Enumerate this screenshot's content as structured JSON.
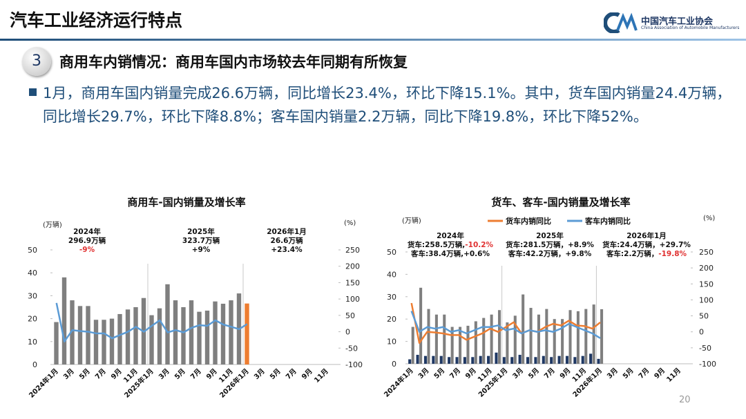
{
  "header": {
    "title": "汽车工业经济运行特点",
    "org": "中国汽车工业协会",
    "org_en": "China Association of Automobile Manufacturers"
  },
  "section": {
    "number": "3",
    "title": "商用车内销情况：",
    "subtitle": "商用车国内市场较去年同期有所恢复"
  },
  "bullet": "1月，商用车国内销量完成26.6万辆，同比增长23.4%，环比下降15.1%。其中，货车国内销量24.4万辆，同比增长29.7%，环比下降8.8%；客车国内销量2.2万辆，同比下降19.8%，环比下降52%。",
  "page_number": "20",
  "chart_data": [
    {
      "type": "bar",
      "title": "商用车-国内销量及增长率",
      "y_label": "(万辆)",
      "y2_label": "(%)",
      "bar_layout": "overlay",
      "categories": [
        "2024年1月",
        null,
        "3月",
        null,
        "5月",
        null,
        "7月",
        null,
        "9月",
        null,
        "11月",
        null,
        "2025年1月",
        null,
        "3月",
        null,
        "5月",
        null,
        "7月",
        null,
        "9月",
        null,
        "11月",
        null,
        "2026年1月",
        null,
        "3月",
        null,
        "5月",
        null,
        "7月",
        null,
        "9月",
        null,
        "11月",
        null
      ],
      "bars": [
        {
          "color": "#7f7f7f",
          "values": [
            18.5,
            38,
            28,
            25.5,
            25.5,
            19.5,
            19.5,
            20,
            22,
            24,
            25,
            29,
            21.5,
            24.5,
            35,
            28,
            25,
            28,
            23,
            23.5,
            27.5,
            26.5,
            28,
            31,
            null,
            null,
            null,
            null,
            null,
            null,
            null,
            null,
            null,
            null,
            null,
            null
          ]
        },
        {
          "color": "#ed7d31",
          "values": [
            null,
            null,
            null,
            null,
            null,
            null,
            null,
            null,
            null,
            null,
            null,
            null,
            null,
            null,
            null,
            null,
            null,
            null,
            null,
            null,
            null,
            null,
            null,
            null,
            26.6,
            null,
            null,
            null,
            null,
            null,
            null,
            null,
            null,
            null,
            null,
            null
          ]
        }
      ],
      "series": [
        {
          "color": "#5b9bd5",
          "axis": "y2",
          "values": [
            88,
            -30,
            5,
            2,
            0,
            -5,
            -5,
            -20,
            -10,
            0,
            15,
            0,
            18,
            35,
            -2,
            5,
            -2,
            12,
            20,
            18,
            35,
            22,
            15,
            8,
            23.4,
            null,
            null,
            null,
            null,
            null,
            null,
            null,
            null,
            null,
            null,
            null
          ]
        }
      ],
      "ylim": [
        0,
        50
      ],
      "yticks": [
        0,
        10,
        20,
        30,
        40,
        50
      ],
      "y2lim": [
        -100,
        250
      ],
      "y2ticks": [
        -100,
        -50,
        0,
        50,
        100,
        150,
        200,
        250
      ],
      "annotations": [
        {
          "lines": [
            [
              "2024年"
            ],
            [
              "296.9万辆"
            ],
            [
              {
                "text": "-9%",
                "color": "#e03030"
              }
            ]
          ]
        },
        {
          "lines": [
            [
              "2025年"
            ],
            [
              "323.7万辆"
            ],
            [
              "+9%"
            ]
          ]
        },
        {
          "lines": [
            [
              "2026年1月"
            ],
            [
              "26.6万辆"
            ],
            [
              "+23.4%"
            ]
          ]
        }
      ]
    },
    {
      "type": "bar",
      "title": "货车、客车-国内销量及增长率",
      "y_label": "(万辆)",
      "y2_label": "(%)",
      "bar_layout": "grouped",
      "categories": [
        "2024年1月",
        null,
        "3月",
        null,
        "5月",
        null,
        "7月",
        null,
        "9月",
        null,
        "11月",
        null,
        "2025年1月",
        null,
        "3月",
        null,
        "5月",
        null,
        "7月",
        null,
        "9月",
        null,
        "11月",
        null,
        "2026年1月",
        null,
        "3月",
        null,
        "5月",
        null,
        "7月",
        null,
        "9月",
        null,
        "11月",
        null
      ],
      "bars": [
        {
          "color": "#1f3864",
          "values": [
            2,
            4,
            3.5,
            3.5,
            3.5,
            3,
            3,
            3,
            3,
            3.5,
            3.5,
            5,
            3,
            3,
            4,
            3,
            3,
            3.5,
            3,
            3.5,
            3.5,
            3,
            3.5,
            4.5,
            2.2,
            null,
            null,
            null,
            null,
            null,
            null,
            null,
            null,
            null,
            null,
            null
          ]
        },
        {
          "color": "#7f7f7f",
          "values": [
            16.5,
            34,
            24.5,
            22,
            22,
            16.5,
            16.5,
            17,
            19,
            20.5,
            22,
            24,
            18.5,
            21.5,
            31,
            25,
            22,
            24.5,
            20,
            20,
            24,
            23.5,
            24.5,
            26.5,
            24.4,
            null,
            null,
            null,
            null,
            null,
            null,
            null,
            null,
            null,
            null,
            null
          ]
        }
      ],
      "series": [
        {
          "name": "货车内销同比",
          "color": "#ed7d31",
          "axis": "y2",
          "values": [
            90,
            -35,
            0,
            -2,
            -5,
            -10,
            -10,
            -25,
            -15,
            -5,
            10,
            0,
            15,
            30,
            -5,
            5,
            0,
            15,
            25,
            20,
            35,
            20,
            18,
            10,
            29.7,
            null,
            null,
            null,
            null,
            null,
            null,
            null,
            null,
            null,
            null,
            null
          ]
        },
        {
          "name": "客车内销同比",
          "color": "#5b9bd5",
          "axis": "y2",
          "values": [
            65,
            0,
            15,
            10,
            15,
            0,
            5,
            -5,
            5,
            15,
            15,
            20,
            5,
            10,
            -5,
            5,
            0,
            5,
            0,
            10,
            25,
            15,
            5,
            -5,
            -19.8,
            null,
            null,
            null,
            null,
            null,
            null,
            null,
            null,
            null,
            null,
            null
          ]
        }
      ],
      "ylim": [
        0,
        50
      ],
      "yticks": [
        0,
        10,
        20,
        30,
        40,
        50
      ],
      "y2lim": [
        -100,
        250
      ],
      "y2ticks": [
        -100,
        -50,
        0,
        50,
        100,
        150,
        200,
        250
      ],
      "annotations": [
        {
          "lines": [
            [
              "2024年"
            ],
            [
              "货车:258.5万辆,",
              {
                "text": "-10.2%",
                "color": "#e03030"
              }
            ],
            [
              "客车:38.4万辆,+0.6%"
            ]
          ]
        },
        {
          "lines": [
            [
              "2025年"
            ],
            [
              "货车:281.5万辆，+8.9%"
            ],
            [
              "客车:42.2万辆，+9.8%"
            ]
          ]
        },
        {
          "lines": [
            [
              "2026年1月"
            ],
            [
              "货车:24.4万辆，+29.7%"
            ],
            [
              "客车:2.2万辆，",
              {
                "text": "-19.8%",
                "color": "#e03030"
              }
            ]
          ]
        }
      ]
    }
  ]
}
